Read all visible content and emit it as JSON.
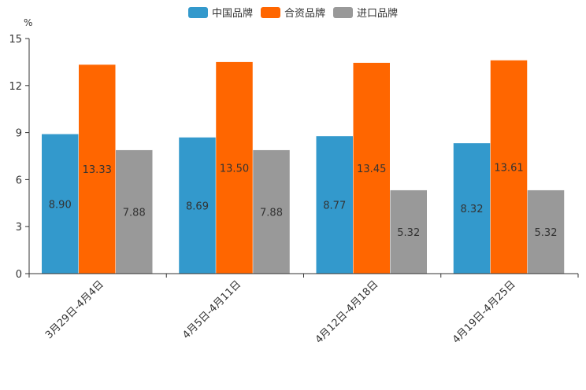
{
  "chart_data": {
    "type": "bar",
    "title": "",
    "unit": "%",
    "xlabel": "",
    "ylabel": "",
    "ylim": [
      0,
      15
    ],
    "yticks": [
      0,
      3,
      6,
      9,
      12,
      15
    ],
    "grid": false,
    "legend_position": "top-center",
    "categories": [
      "3月29日-4月4日",
      "4月5日-4月11日",
      "4月12日-4月18日",
      "4月19日-4月25日"
    ],
    "series": [
      {
        "name": "中国品牌",
        "color": "#3399cc",
        "values": [
          8.9,
          8.69,
          8.77,
          8.32
        ],
        "labels": [
          "8.90",
          "8.69",
          "8.77",
          "8.32"
        ]
      },
      {
        "name": "合资品牌",
        "color": "#ff6600",
        "values": [
          13.33,
          13.5,
          13.45,
          13.61
        ],
        "labels": [
          "13.33",
          "13.50",
          "13.45",
          "13.61"
        ]
      },
      {
        "name": "进口品牌",
        "color": "#999999",
        "values": [
          7.88,
          7.88,
          5.32,
          5.32
        ],
        "labels": [
          "7.88",
          "7.88",
          "5.32",
          "5.32"
        ]
      }
    ]
  }
}
